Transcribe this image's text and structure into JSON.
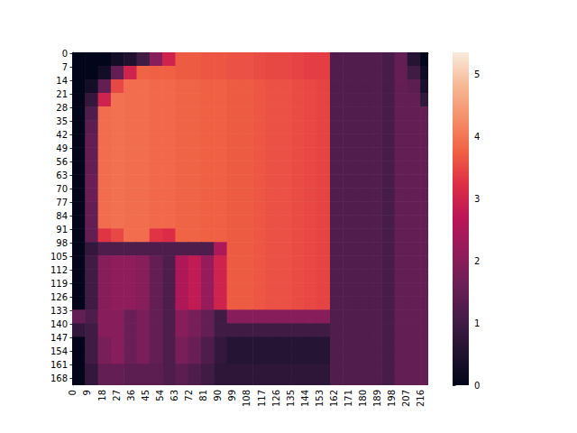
{
  "chart_data": {
    "type": "heatmap",
    "x": [
      0,
      8,
      16,
      24,
      32,
      40,
      48,
      56,
      64,
      72,
      80,
      88,
      96,
      104,
      112,
      120,
      128,
      136,
      144,
      152,
      160,
      168,
      176,
      184,
      192,
      200,
      208,
      216
    ],
    "y": [
      0,
      7,
      14,
      21,
      28,
      35,
      42,
      49,
      56,
      63,
      70,
      77,
      84,
      91,
      98,
      105,
      112,
      119,
      126,
      133,
      140,
      147,
      154,
      161,
      168
    ],
    "values": [
      [
        0,
        0,
        0,
        0.3,
        0.5,
        1.0,
        2.0,
        3.0,
        3.7,
        3.7,
        3.65,
        3.65,
        3.6,
        3.6,
        3.55,
        3.5,
        3.5,
        3.45,
        3.4,
        3.4,
        1.25,
        1.25,
        1.25,
        1.25,
        1.1,
        1.5,
        0.6,
        0
      ],
      [
        0,
        0,
        0.3,
        1.5,
        3.0,
        3.8,
        3.75,
        3.75,
        3.7,
        3.7,
        3.65,
        3.65,
        3.6,
        3.6,
        3.55,
        3.5,
        3.5,
        3.45,
        3.4,
        3.4,
        1.25,
        1.25,
        1.25,
        1.25,
        1.1,
        1.5,
        1.0,
        0.2
      ],
      [
        0,
        0.3,
        1.5,
        3.5,
        3.9,
        3.9,
        3.85,
        3.85,
        3.8,
        3.8,
        3.75,
        3.75,
        3.7,
        3.7,
        3.65,
        3.6,
        3.6,
        3.55,
        3.5,
        3.45,
        1.25,
        1.25,
        1.25,
        1.25,
        1.1,
        1.5,
        1.4,
        0.4
      ],
      [
        0,
        0.8,
        3.0,
        3.95,
        3.9,
        3.9,
        3.85,
        3.85,
        3.8,
        3.8,
        3.75,
        3.75,
        3.7,
        3.7,
        3.65,
        3.6,
        3.6,
        3.55,
        3.5,
        3.45,
        1.25,
        1.25,
        1.25,
        1.25,
        1.1,
        1.5,
        1.5,
        0.8
      ],
      [
        0,
        1.2,
        3.9,
        3.95,
        3.9,
        3.9,
        3.85,
        3.85,
        3.8,
        3.8,
        3.75,
        3.75,
        3.7,
        3.7,
        3.65,
        3.6,
        3.6,
        3.55,
        3.5,
        3.45,
        1.25,
        1.25,
        1.25,
        1.25,
        1.1,
        1.5,
        1.5,
        1.5
      ],
      [
        0,
        1.4,
        3.9,
        3.95,
        3.9,
        3.9,
        3.85,
        3.85,
        3.8,
        3.8,
        3.75,
        3.75,
        3.7,
        3.7,
        3.65,
        3.6,
        3.6,
        3.55,
        3.5,
        3.45,
        1.25,
        1.25,
        1.25,
        1.25,
        1.1,
        1.5,
        1.5,
        1.5
      ],
      [
        0,
        1.5,
        3.9,
        3.95,
        3.9,
        3.9,
        3.85,
        3.85,
        3.8,
        3.8,
        3.75,
        3.75,
        3.7,
        3.7,
        3.65,
        3.6,
        3.6,
        3.55,
        3.5,
        3.45,
        1.25,
        1.25,
        1.25,
        1.25,
        1.1,
        1.5,
        1.5,
        1.5
      ],
      [
        0,
        1.5,
        3.9,
        3.95,
        3.9,
        3.9,
        3.85,
        3.85,
        3.8,
        3.8,
        3.75,
        3.75,
        3.7,
        3.7,
        3.65,
        3.6,
        3.6,
        3.55,
        3.5,
        3.45,
        1.25,
        1.25,
        1.25,
        1.25,
        1.1,
        1.5,
        1.5,
        1.5
      ],
      [
        0,
        1.5,
        3.9,
        3.95,
        3.9,
        3.9,
        3.85,
        3.85,
        3.8,
        3.8,
        3.75,
        3.75,
        3.7,
        3.7,
        3.65,
        3.6,
        3.6,
        3.55,
        3.5,
        3.45,
        1.25,
        1.25,
        1.25,
        1.25,
        1.1,
        1.5,
        1.5,
        1.5
      ],
      [
        0,
        1.6,
        3.9,
        3.95,
        3.9,
        3.9,
        3.85,
        3.85,
        3.8,
        3.8,
        3.75,
        3.75,
        3.7,
        3.7,
        3.65,
        3.6,
        3.6,
        3.55,
        3.5,
        3.45,
        1.25,
        1.25,
        1.25,
        1.25,
        1.1,
        1.5,
        1.5,
        1.5
      ],
      [
        0,
        1.6,
        3.9,
        3.95,
        3.9,
        3.9,
        3.85,
        3.85,
        3.8,
        3.8,
        3.75,
        3.75,
        3.7,
        3.7,
        3.65,
        3.6,
        3.6,
        3.55,
        3.5,
        3.45,
        1.25,
        1.25,
        1.25,
        1.25,
        1.1,
        1.5,
        1.5,
        1.5
      ],
      [
        0,
        1.5,
        3.9,
        3.95,
        3.9,
        3.9,
        3.85,
        3.85,
        3.8,
        3.8,
        3.75,
        3.75,
        3.7,
        3.7,
        3.65,
        3.6,
        3.6,
        3.55,
        3.5,
        3.45,
        1.25,
        1.25,
        1.25,
        1.25,
        1.1,
        1.5,
        1.5,
        1.5
      ],
      [
        0,
        1.5,
        3.9,
        3.95,
        3.9,
        3.9,
        3.85,
        3.85,
        3.8,
        3.8,
        3.75,
        3.75,
        3.7,
        3.7,
        3.65,
        3.6,
        3.6,
        3.55,
        3.5,
        3.45,
        1.25,
        1.25,
        1.25,
        1.25,
        1.1,
        1.5,
        1.5,
        1.5
      ],
      [
        0,
        1.5,
        3.3,
        3.5,
        3.9,
        3.9,
        3.3,
        3.2,
        3.8,
        3.8,
        3.75,
        3.75,
        3.7,
        3.7,
        3.65,
        3.6,
        3.6,
        3.55,
        3.5,
        3.45,
        1.25,
        1.25,
        1.25,
        1.25,
        1.1,
        1.5,
        1.5,
        1.5
      ],
      [
        0,
        0.8,
        1.2,
        1.2,
        1.2,
        1.2,
        1.2,
        1.2,
        1.2,
        1.2,
        1.2,
        2.5,
        3.7,
        3.7,
        3.65,
        3.6,
        3.6,
        3.55,
        3.5,
        3.45,
        1.25,
        1.25,
        1.25,
        1.25,
        1.1,
        1.5,
        1.5,
        1.5
      ],
      [
        0,
        1.0,
        2.0,
        2.1,
        2.1,
        2.0,
        1.5,
        1.2,
        2.5,
        2.8,
        2.2,
        3.0,
        3.7,
        3.7,
        3.65,
        3.6,
        3.6,
        3.55,
        3.5,
        3.45,
        1.25,
        1.25,
        1.25,
        1.25,
        1.1,
        1.5,
        1.5,
        1.5
      ],
      [
        0,
        1.0,
        2.0,
        2.1,
        2.1,
        2.0,
        1.5,
        1.2,
        2.5,
        2.8,
        2.2,
        3.0,
        3.7,
        3.7,
        3.65,
        3.6,
        3.6,
        3.55,
        3.5,
        3.45,
        1.25,
        1.25,
        1.25,
        1.25,
        1.1,
        1.5,
        1.5,
        1.5
      ],
      [
        0,
        1.0,
        2.0,
        2.1,
        2.1,
        2.0,
        1.5,
        1.2,
        2.5,
        2.8,
        2.2,
        3.0,
        3.7,
        3.7,
        3.65,
        3.6,
        3.6,
        3.55,
        3.5,
        3.45,
        1.25,
        1.25,
        1.25,
        1.25,
        1.1,
        1.5,
        1.5,
        1.5
      ],
      [
        0,
        1.0,
        2.0,
        2.1,
        2.1,
        2.0,
        1.5,
        1.2,
        2.5,
        2.8,
        2.2,
        3.0,
        3.7,
        3.7,
        3.65,
        3.6,
        3.6,
        3.55,
        3.5,
        3.45,
        1.25,
        1.25,
        1.25,
        1.25,
        1.1,
        1.5,
        1.5,
        1.5
      ],
      [
        1.5,
        1.2,
        2.0,
        2.0,
        1.6,
        1.8,
        1.5,
        1.2,
        2.0,
        1.8,
        1.5,
        1.0,
        2.0,
        2.0,
        2.0,
        2.0,
        2.0,
        2.0,
        2.0,
        2.0,
        1.25,
        1.25,
        1.25,
        1.25,
        1.1,
        1.5,
        1.5,
        1.5
      ],
      [
        0.8,
        1.0,
        2.0,
        2.0,
        1.6,
        1.8,
        1.5,
        1.2,
        2.0,
        1.8,
        1.5,
        1.0,
        1.0,
        1.0,
        1.0,
        1.0,
        1.0,
        1.0,
        1.0,
        1.0,
        1.25,
        1.25,
        1.25,
        1.25,
        1.1,
        1.5,
        1.5,
        1.5
      ],
      [
        0,
        1.0,
        1.8,
        2.0,
        1.6,
        1.8,
        1.5,
        1.2,
        1.8,
        1.6,
        1.2,
        0.8,
        0.6,
        0.6,
        0.6,
        0.6,
        0.6,
        0.6,
        0.6,
        0.6,
        1.25,
        1.25,
        1.25,
        1.25,
        1.1,
        1.5,
        1.5,
        1.5
      ],
      [
        0,
        1.0,
        1.8,
        2.0,
        1.6,
        1.8,
        1.5,
        1.2,
        1.8,
        1.6,
        1.2,
        0.8,
        0.6,
        0.6,
        0.6,
        0.6,
        0.6,
        0.6,
        0.6,
        0.6,
        1.25,
        1.25,
        1.25,
        1.25,
        1.1,
        1.5,
        1.5,
        1.5
      ],
      [
        0,
        0.8,
        1.5,
        1.5,
        1.4,
        1.4,
        1.4,
        1.2,
        1.4,
        1.2,
        1.0,
        0.7,
        0.7,
        0.7,
        0.7,
        0.7,
        0.7,
        0.7,
        0.7,
        0.7,
        1.25,
        1.25,
        1.25,
        1.25,
        1.1,
        1.5,
        1.5,
        1.5
      ],
      [
        0,
        0.8,
        1.5,
        1.5,
        1.4,
        1.4,
        1.4,
        1.2,
        1.4,
        1.2,
        1.0,
        0.7,
        0.7,
        0.7,
        0.7,
        0.7,
        0.7,
        0.7,
        0.7,
        0.7,
        1.25,
        1.25,
        1.25,
        1.25,
        1.1,
        1.5,
        1.5,
        1.5
      ]
    ],
    "xlim": [
      -0.5,
      220.5
    ],
    "ylim": [
      -0.5,
      171.5
    ],
    "xticks": [
      0,
      9,
      18,
      27,
      36,
      45,
      54,
      63,
      72,
      81,
      90,
      99,
      108,
      117,
      126,
      135,
      144,
      153,
      162,
      171,
      180,
      189,
      198,
      207,
      216
    ],
    "yticks": [
      0,
      7,
      14,
      21,
      28,
      35,
      42,
      49,
      56,
      63,
      70,
      77,
      84,
      91,
      98,
      105,
      112,
      119,
      126,
      133,
      140,
      147,
      154,
      161,
      168
    ],
    "colorbar": {
      "range": [
        0,
        5.36
      ],
      "ticks": [
        0,
        1,
        2,
        3,
        4,
        5
      ]
    }
  }
}
